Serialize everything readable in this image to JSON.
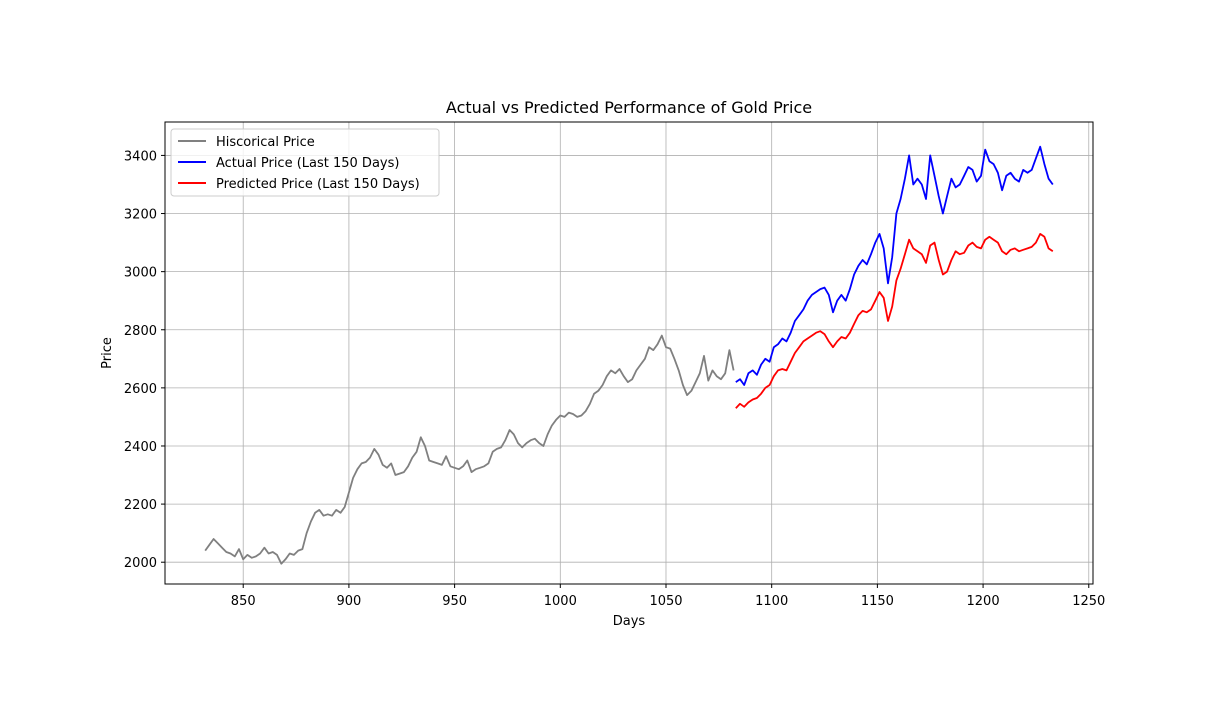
{
  "chart_data": {
    "type": "line",
    "title": "Actual vs Predicted Performance of Gold Price",
    "xlabel": "Days",
    "ylabel": "Price",
    "xlim": [
      813,
      1252
    ],
    "ylim": [
      1925,
      3515
    ],
    "xticks": [
      850,
      900,
      950,
      1000,
      1050,
      1100,
      1150,
      1200,
      1250
    ],
    "yticks": [
      2000,
      2200,
      2400,
      2600,
      2800,
      3000,
      3200,
      3400
    ],
    "grid": true,
    "legend_position": "top-left",
    "series": [
      {
        "name": "Hiscorical Price",
        "color": "#808080",
        "points": [
          [
            832,
            2040
          ],
          [
            834,
            2060
          ],
          [
            836,
            2080
          ],
          [
            838,
            2065
          ],
          [
            840,
            2050
          ],
          [
            842,
            2035
          ],
          [
            844,
            2030
          ],
          [
            846,
            2020
          ],
          [
            848,
            2045
          ],
          [
            850,
            2010
          ],
          [
            852,
            2025
          ],
          [
            854,
            2015
          ],
          [
            856,
            2020
          ],
          [
            858,
            2030
          ],
          [
            860,
            2050
          ],
          [
            862,
            2030
          ],
          [
            864,
            2035
          ],
          [
            866,
            2025
          ],
          [
            868,
            1995
          ],
          [
            870,
            2010
          ],
          [
            872,
            2030
          ],
          [
            874,
            2025
          ],
          [
            876,
            2040
          ],
          [
            878,
            2045
          ],
          [
            880,
            2100
          ],
          [
            882,
            2140
          ],
          [
            884,
            2170
          ],
          [
            886,
            2180
          ],
          [
            888,
            2160
          ],
          [
            890,
            2165
          ],
          [
            892,
            2160
          ],
          [
            894,
            2180
          ],
          [
            896,
            2170
          ],
          [
            898,
            2190
          ],
          [
            900,
            2240
          ],
          [
            902,
            2290
          ],
          [
            904,
            2320
          ],
          [
            906,
            2340
          ],
          [
            908,
            2345
          ],
          [
            910,
            2360
          ],
          [
            912,
            2390
          ],
          [
            914,
            2370
          ],
          [
            916,
            2335
          ],
          [
            918,
            2325
          ],
          [
            920,
            2340
          ],
          [
            922,
            2300
          ],
          [
            924,
            2305
          ],
          [
            926,
            2310
          ],
          [
            928,
            2330
          ],
          [
            930,
            2360
          ],
          [
            932,
            2380
          ],
          [
            934,
            2430
          ],
          [
            936,
            2400
          ],
          [
            938,
            2350
          ],
          [
            940,
            2345
          ],
          [
            942,
            2340
          ],
          [
            944,
            2335
          ],
          [
            946,
            2365
          ],
          [
            948,
            2330
          ],
          [
            950,
            2325
          ],
          [
            952,
            2320
          ],
          [
            954,
            2330
          ],
          [
            956,
            2350
          ],
          [
            958,
            2310
          ],
          [
            960,
            2320
          ],
          [
            962,
            2325
          ],
          [
            964,
            2330
          ],
          [
            966,
            2340
          ],
          [
            968,
            2380
          ],
          [
            970,
            2390
          ],
          [
            972,
            2395
          ],
          [
            974,
            2420
          ],
          [
            976,
            2455
          ],
          [
            978,
            2440
          ],
          [
            980,
            2410
          ],
          [
            982,
            2395
          ],
          [
            984,
            2410
          ],
          [
            986,
            2420
          ],
          [
            988,
            2425
          ],
          [
            990,
            2410
          ],
          [
            992,
            2400
          ],
          [
            994,
            2440
          ],
          [
            996,
            2470
          ],
          [
            998,
            2490
          ],
          [
            1000,
            2505
          ],
          [
            1002,
            2500
          ],
          [
            1004,
            2515
          ],
          [
            1006,
            2510
          ],
          [
            1008,
            2500
          ],
          [
            1010,
            2505
          ],
          [
            1012,
            2520
          ],
          [
            1014,
            2545
          ],
          [
            1016,
            2580
          ],
          [
            1018,
            2590
          ],
          [
            1020,
            2610
          ],
          [
            1022,
            2640
          ],
          [
            1024,
            2660
          ],
          [
            1026,
            2650
          ],
          [
            1028,
            2665
          ],
          [
            1030,
            2640
          ],
          [
            1032,
            2620
          ],
          [
            1034,
            2630
          ],
          [
            1036,
            2660
          ],
          [
            1038,
            2680
          ],
          [
            1040,
            2700
          ],
          [
            1042,
            2740
          ],
          [
            1044,
            2730
          ],
          [
            1046,
            2750
          ],
          [
            1048,
            2780
          ],
          [
            1050,
            2740
          ],
          [
            1052,
            2735
          ],
          [
            1054,
            2700
          ],
          [
            1056,
            2660
          ],
          [
            1058,
            2610
          ],
          [
            1060,
            2575
          ],
          [
            1062,
            2590
          ],
          [
            1064,
            2620
          ],
          [
            1066,
            2650
          ],
          [
            1068,
            2710
          ],
          [
            1070,
            2625
          ],
          [
            1072,
            2660
          ],
          [
            1074,
            2640
          ],
          [
            1076,
            2630
          ],
          [
            1078,
            2650
          ],
          [
            1080,
            2730
          ],
          [
            1082,
            2660
          ]
        ]
      },
      {
        "name": "Actual Price (Last 150 Days)",
        "color": "#0000ff",
        "points": [
          [
            1083,
            2620
          ],
          [
            1085,
            2630
          ],
          [
            1087,
            2610
          ],
          [
            1089,
            2650
          ],
          [
            1091,
            2660
          ],
          [
            1093,
            2645
          ],
          [
            1095,
            2680
          ],
          [
            1097,
            2700
          ],
          [
            1099,
            2690
          ],
          [
            1101,
            2740
          ],
          [
            1103,
            2750
          ],
          [
            1105,
            2770
          ],
          [
            1107,
            2760
          ],
          [
            1109,
            2790
          ],
          [
            1111,
            2830
          ],
          [
            1113,
            2850
          ],
          [
            1115,
            2870
          ],
          [
            1117,
            2900
          ],
          [
            1119,
            2920
          ],
          [
            1121,
            2930
          ],
          [
            1123,
            2940
          ],
          [
            1125,
            2945
          ],
          [
            1127,
            2920
          ],
          [
            1129,
            2860
          ],
          [
            1131,
            2900
          ],
          [
            1133,
            2920
          ],
          [
            1135,
            2900
          ],
          [
            1137,
            2940
          ],
          [
            1139,
            2990
          ],
          [
            1141,
            3020
          ],
          [
            1143,
            3040
          ],
          [
            1145,
            3025
          ],
          [
            1147,
            3060
          ],
          [
            1149,
            3100
          ],
          [
            1151,
            3130
          ],
          [
            1153,
            3080
          ],
          [
            1155,
            2960
          ],
          [
            1157,
            3050
          ],
          [
            1159,
            3200
          ],
          [
            1161,
            3250
          ],
          [
            1163,
            3320
          ],
          [
            1165,
            3400
          ],
          [
            1167,
            3300
          ],
          [
            1169,
            3320
          ],
          [
            1171,
            3300
          ],
          [
            1173,
            3250
          ],
          [
            1175,
            3400
          ],
          [
            1177,
            3330
          ],
          [
            1179,
            3260
          ],
          [
            1181,
            3200
          ],
          [
            1183,
            3260
          ],
          [
            1185,
            3320
          ],
          [
            1187,
            3290
          ],
          [
            1189,
            3300
          ],
          [
            1191,
            3330
          ],
          [
            1193,
            3360
          ],
          [
            1195,
            3350
          ],
          [
            1197,
            3310
          ],
          [
            1199,
            3330
          ],
          [
            1201,
            3420
          ],
          [
            1203,
            3380
          ],
          [
            1205,
            3370
          ],
          [
            1207,
            3340
          ],
          [
            1209,
            3280
          ],
          [
            1211,
            3330
          ],
          [
            1213,
            3340
          ],
          [
            1215,
            3320
          ],
          [
            1217,
            3310
          ],
          [
            1219,
            3350
          ],
          [
            1221,
            3340
          ],
          [
            1223,
            3350
          ],
          [
            1225,
            3390
          ],
          [
            1227,
            3430
          ],
          [
            1229,
            3370
          ],
          [
            1231,
            3320
          ],
          [
            1233,
            3300
          ]
        ]
      },
      {
        "name": "Predicted Price (Last 150 Days)",
        "color": "#ff0000",
        "points": [
          [
            1083,
            2530
          ],
          [
            1085,
            2545
          ],
          [
            1087,
            2535
          ],
          [
            1089,
            2550
          ],
          [
            1091,
            2560
          ],
          [
            1093,
            2565
          ],
          [
            1095,
            2580
          ],
          [
            1097,
            2600
          ],
          [
            1099,
            2610
          ],
          [
            1101,
            2640
          ],
          [
            1103,
            2660
          ],
          [
            1105,
            2665
          ],
          [
            1107,
            2660
          ],
          [
            1109,
            2690
          ],
          [
            1111,
            2720
          ],
          [
            1113,
            2740
          ],
          [
            1115,
            2760
          ],
          [
            1117,
            2770
          ],
          [
            1119,
            2780
          ],
          [
            1121,
            2790
          ],
          [
            1123,
            2795
          ],
          [
            1125,
            2785
          ],
          [
            1127,
            2760
          ],
          [
            1129,
            2740
          ],
          [
            1131,
            2760
          ],
          [
            1133,
            2775
          ],
          [
            1135,
            2770
          ],
          [
            1137,
            2790
          ],
          [
            1139,
            2820
          ],
          [
            1141,
            2850
          ],
          [
            1143,
            2865
          ],
          [
            1145,
            2860
          ],
          [
            1147,
            2870
          ],
          [
            1149,
            2900
          ],
          [
            1151,
            2930
          ],
          [
            1153,
            2910
          ],
          [
            1155,
            2830
          ],
          [
            1157,
            2880
          ],
          [
            1159,
            2970
          ],
          [
            1161,
            3010
          ],
          [
            1163,
            3060
          ],
          [
            1165,
            3110
          ],
          [
            1167,
            3080
          ],
          [
            1169,
            3070
          ],
          [
            1171,
            3060
          ],
          [
            1173,
            3030
          ],
          [
            1175,
            3090
          ],
          [
            1177,
            3100
          ],
          [
            1179,
            3040
          ],
          [
            1181,
            2990
          ],
          [
            1183,
            3000
          ],
          [
            1185,
            3040
          ],
          [
            1187,
            3070
          ],
          [
            1189,
            3060
          ],
          [
            1191,
            3065
          ],
          [
            1193,
            3090
          ],
          [
            1195,
            3100
          ],
          [
            1197,
            3085
          ],
          [
            1199,
            3080
          ],
          [
            1201,
            3110
          ],
          [
            1203,
            3120
          ],
          [
            1205,
            3110
          ],
          [
            1207,
            3100
          ],
          [
            1209,
            3070
          ],
          [
            1211,
            3060
          ],
          [
            1213,
            3075
          ],
          [
            1215,
            3080
          ],
          [
            1217,
            3070
          ],
          [
            1219,
            3075
          ],
          [
            1221,
            3080
          ],
          [
            1223,
            3085
          ],
          [
            1225,
            3100
          ],
          [
            1227,
            3130
          ],
          [
            1229,
            3120
          ],
          [
            1231,
            3080
          ],
          [
            1233,
            3070
          ]
        ]
      }
    ]
  }
}
